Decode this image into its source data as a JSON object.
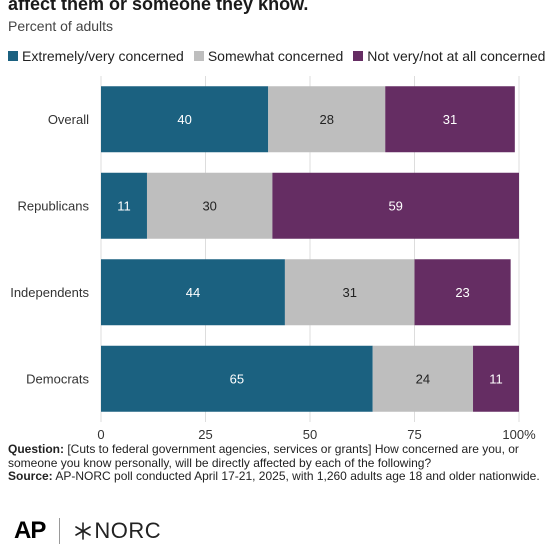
{
  "header": {
    "title": "affect them or someone they know.",
    "subtitle": "Percent of adults"
  },
  "colors": {
    "concerned": "#1b6180",
    "somewhat": "#bebebe",
    "not_concerned": "#652d63"
  },
  "chart_data": {
    "type": "bar",
    "orientation": "horizontal",
    "stacked": true,
    "categories": [
      "Overall",
      "Republicans",
      "Independents",
      "Democrats"
    ],
    "series": [
      {
        "name": "Extremely/very concerned",
        "values": [
          40,
          11,
          44,
          65
        ],
        "color": "#1b6180",
        "label_color": "#ffffff"
      },
      {
        "name": "Somewhat concerned",
        "values": [
          28,
          30,
          31,
          24
        ],
        "color": "#bebebe",
        "label_color": "#222222"
      },
      {
        "name": "Not very/not at all concerned",
        "values": [
          31,
          59,
          23,
          11
        ],
        "color": "#652d63",
        "label_color": "#ffffff"
      }
    ],
    "xlim": [
      0,
      100
    ],
    "xticks": [
      "0",
      "25",
      "50",
      "75",
      "100%"
    ],
    "legend_position": "top"
  },
  "notes": {
    "question_label": "Question:",
    "question_text": "[Cuts to federal government agencies, services or grants] How concerned are you, or someone you know personally, will be directly affected by each of the following?",
    "source_label": "Source:",
    "source_text": "AP-NORC poll conducted April 17-21, 2025, with 1,260 adults age 18 and older nationwide."
  },
  "logos": {
    "ap": "AP",
    "norc": "NORC"
  }
}
